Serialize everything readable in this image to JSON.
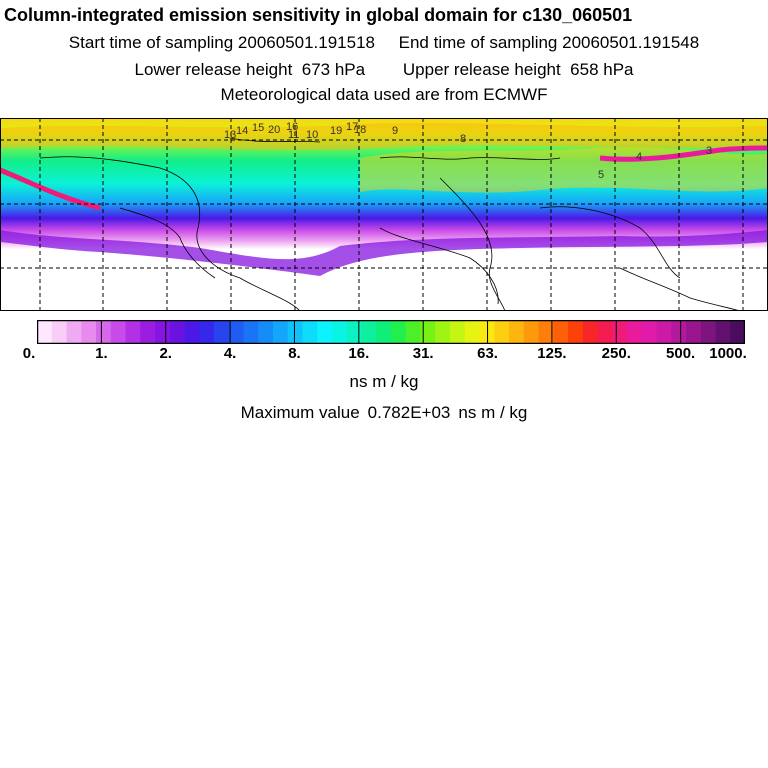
{
  "header": {
    "title": "Column-integrated emission sensitivity in global domain for c130_060501",
    "start": "Start time of sampling 20060501.191518",
    "end": "End time of sampling 20060501.191548",
    "lower": "Lower release height  673 hPa",
    "upper": "Upper release height  658 hPa",
    "met": "Meteorological data used are from ECMWF"
  },
  "colorbar": {
    "ticks": [
      "0.",
      "1.",
      "2.",
      "4.",
      "8.",
      "16.",
      "31.",
      "63.",
      "125.",
      "250.",
      "500.",
      "1000."
    ],
    "units": "ns m / kg",
    "colors": [
      "#ffe8ff",
      "#f8cdf8",
      "#f0aaf2",
      "#e88aee",
      "#d768ea",
      "#c84ae8",
      "#b330e5",
      "#9a1de0",
      "#8515e0",
      "#6a12e2",
      "#4c18e6",
      "#3528ea",
      "#2744ee",
      "#1f5cf2",
      "#1a74f6",
      "#168cf8",
      "#14a6fa",
      "#10c2fc",
      "#0edcfd",
      "#0cf2fe",
      "#0af4e4",
      "#0cf2c2",
      "#0ef09e",
      "#10ee7a",
      "#22ee4e",
      "#4cf02a",
      "#78f216",
      "#a0f414",
      "#c4f612",
      "#e6f412",
      "#fae812",
      "#fcd010",
      "#fdb60e",
      "#fd9a0c",
      "#fd7e0a",
      "#fd6008",
      "#fc400a",
      "#f82626",
      "#f41c50",
      "#f01a78",
      "#ea1a9c",
      "#e01aaa",
      "#cc1aa6",
      "#b4189e",
      "#9a1690",
      "#7e1480",
      "#621070",
      "#4a0c5e"
    ]
  },
  "summary": {
    "max_label": "Maximum value",
    "max_value": "0.782E+03",
    "max_units": "ns m / kg"
  },
  "map": {
    "plume_labels": [
      "13",
      "14",
      "15",
      "16",
      "17",
      "18",
      "20",
      "11",
      "10",
      "19",
      "9",
      "8",
      "5",
      "4",
      "3"
    ]
  }
}
